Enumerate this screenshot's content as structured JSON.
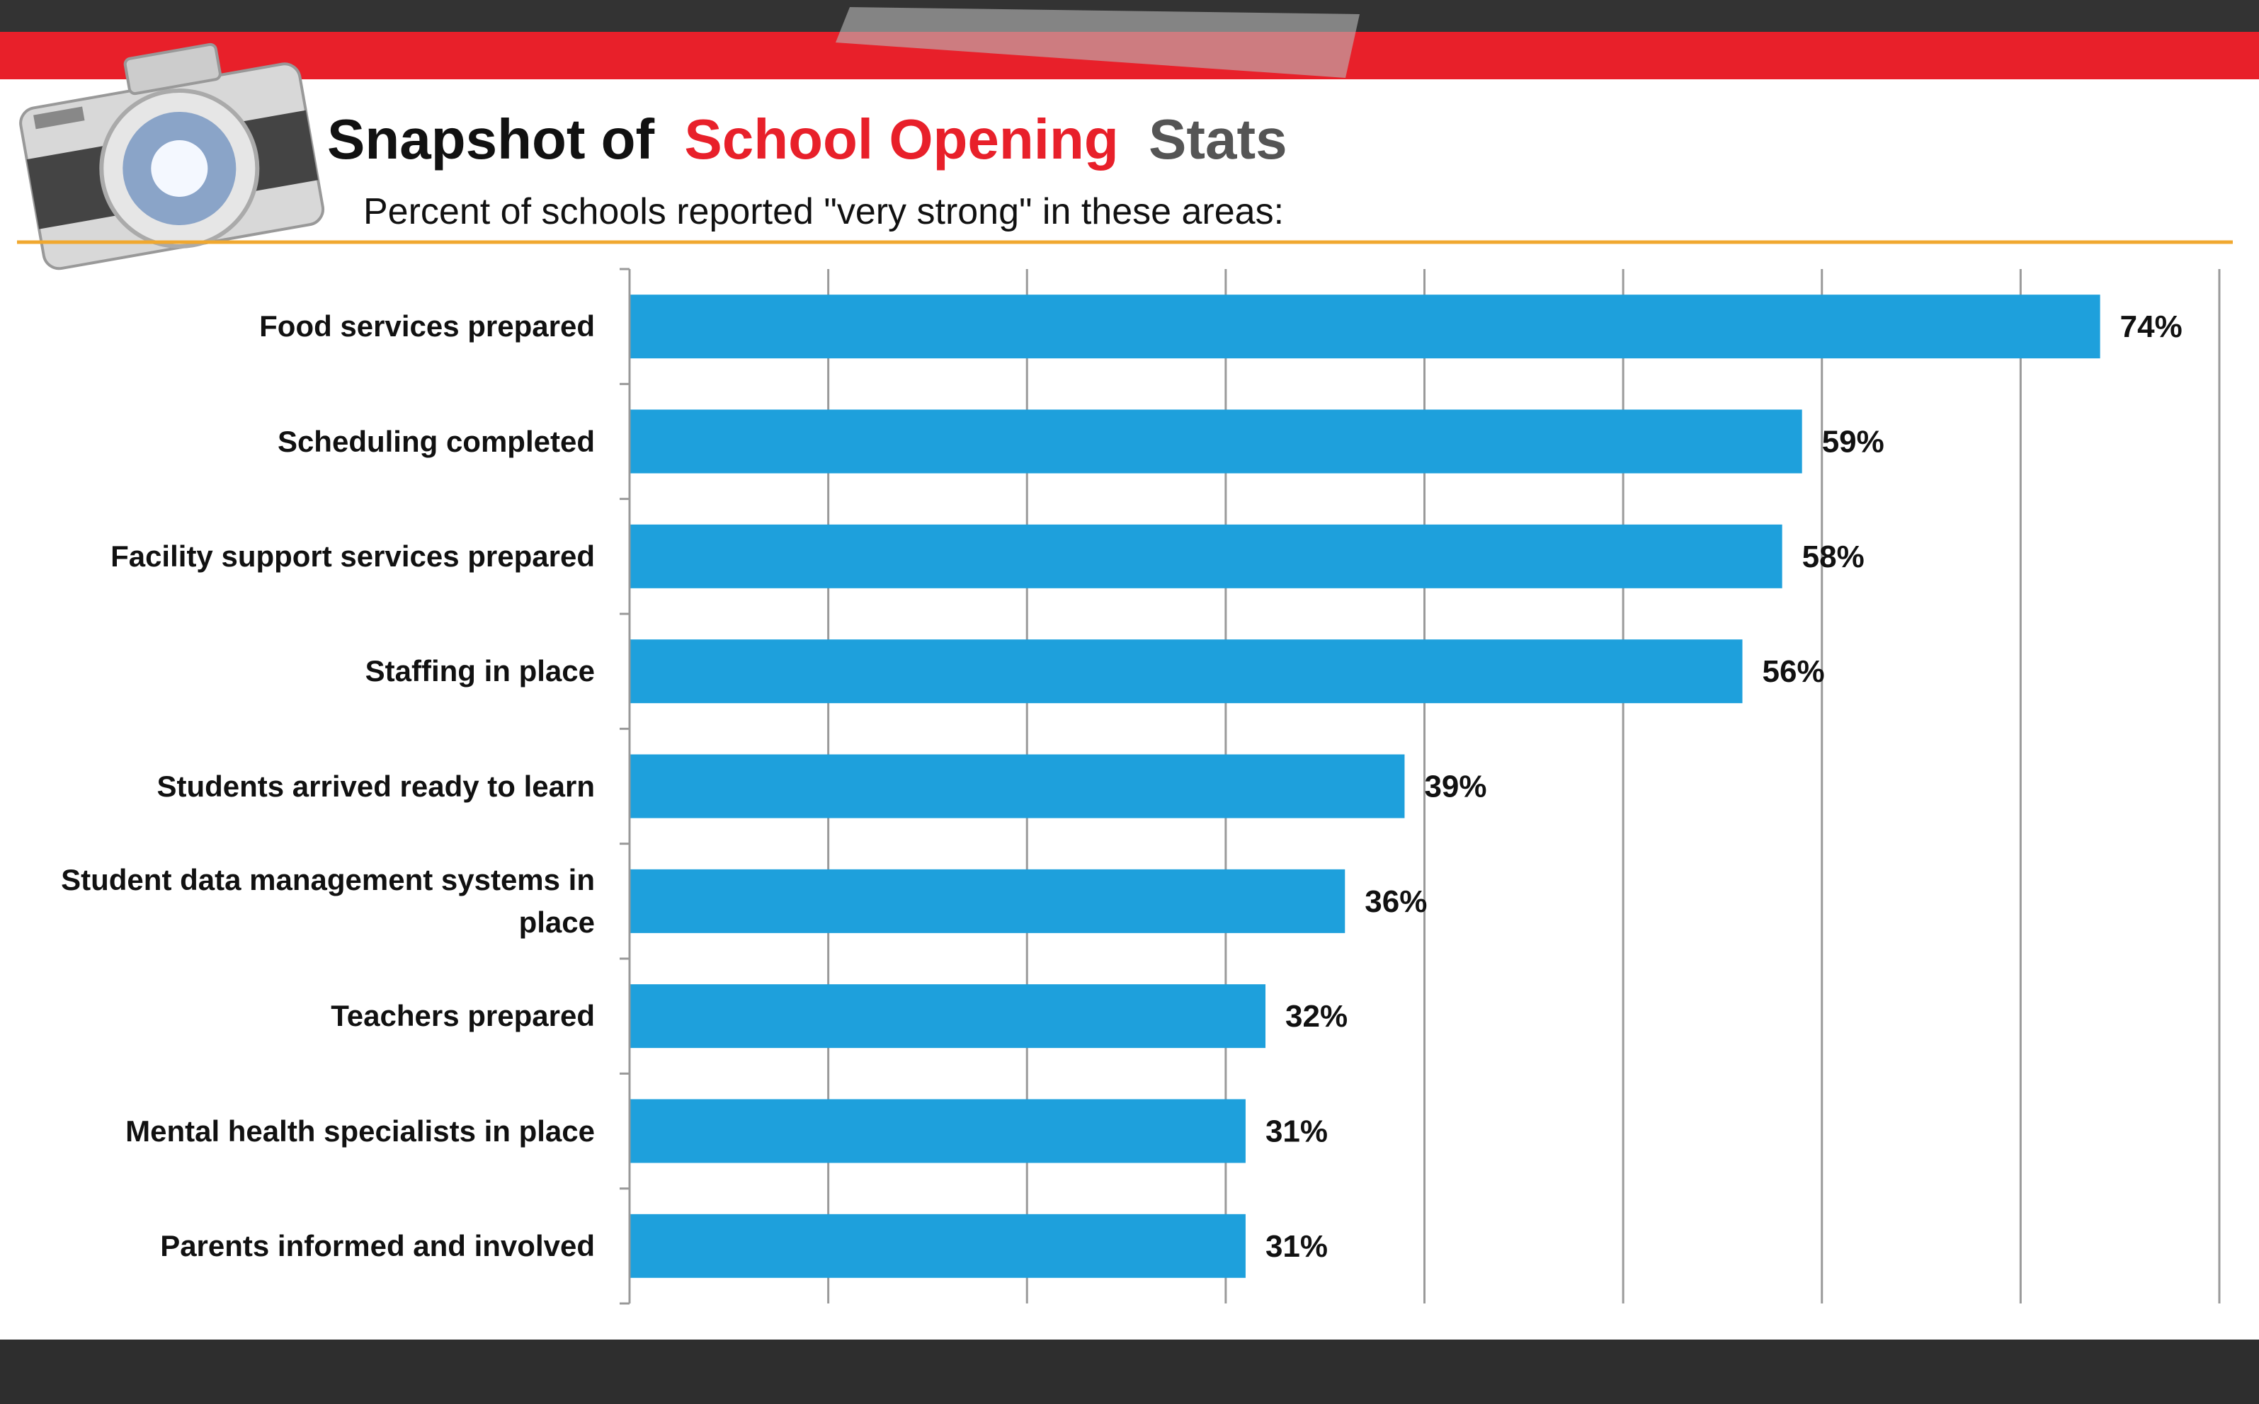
{
  "chart_data": {
    "type": "bar",
    "orientation": "horizontal",
    "title": [
      "Snapshot of",
      "School Opening",
      "Stats"
    ],
    "title_colors": [
      "#111111",
      "#e8202a",
      "#555555"
    ],
    "subtitle": "Percent of schools reported \"very strong\" in these areas:",
    "categories": [
      "Food services prepared",
      "Scheduling completed",
      "Facility support services prepared",
      "Staffing in place",
      "Students arrived ready to learn",
      "Student data management systems in place",
      "Teachers prepared",
      "Mental health specialists in place",
      "Parents informed and involved"
    ],
    "values": [
      74,
      59,
      58,
      56,
      39,
      36,
      32,
      31,
      31
    ],
    "value_labels": [
      "74%",
      "59%",
      "58%",
      "56%",
      "39%",
      "36%",
      "32%",
      "31%",
      "31%"
    ],
    "color": "#1ea0dc",
    "xlim": [
      0,
      80
    ],
    "xticks": [
      0,
      10,
      20,
      30,
      40,
      50,
      60,
      70,
      80
    ],
    "grid": true
  }
}
